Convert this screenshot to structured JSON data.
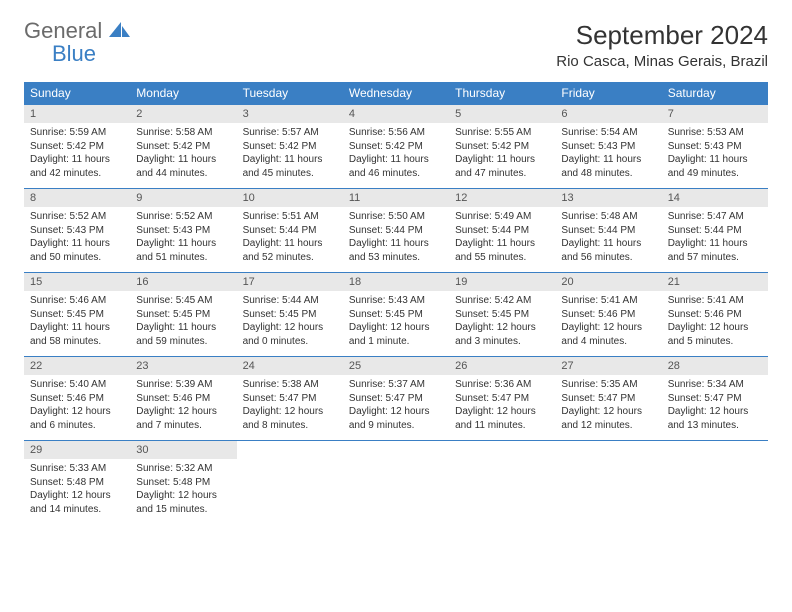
{
  "logo": {
    "general": "General",
    "blue": "Blue"
  },
  "title": "September 2024",
  "location": "Rio Casca, Minas Gerais, Brazil",
  "colors": {
    "header_bg": "#3a7fc4",
    "header_text": "#ffffff",
    "daynum_bg": "#e8e8e8",
    "daynum_text": "#555555",
    "body_text": "#333333",
    "border": "#3a7fc4",
    "logo_gray": "#6b6b6b",
    "logo_blue": "#3a7fc4"
  },
  "dow": [
    "Sunday",
    "Monday",
    "Tuesday",
    "Wednesday",
    "Thursday",
    "Friday",
    "Saturday"
  ],
  "weeks": [
    [
      {
        "n": "1",
        "sr": "Sunrise: 5:59 AM",
        "ss": "Sunset: 5:42 PM",
        "d1": "Daylight: 11 hours",
        "d2": "and 42 minutes."
      },
      {
        "n": "2",
        "sr": "Sunrise: 5:58 AM",
        "ss": "Sunset: 5:42 PM",
        "d1": "Daylight: 11 hours",
        "d2": "and 44 minutes."
      },
      {
        "n": "3",
        "sr": "Sunrise: 5:57 AM",
        "ss": "Sunset: 5:42 PM",
        "d1": "Daylight: 11 hours",
        "d2": "and 45 minutes."
      },
      {
        "n": "4",
        "sr": "Sunrise: 5:56 AM",
        "ss": "Sunset: 5:42 PM",
        "d1": "Daylight: 11 hours",
        "d2": "and 46 minutes."
      },
      {
        "n": "5",
        "sr": "Sunrise: 5:55 AM",
        "ss": "Sunset: 5:42 PM",
        "d1": "Daylight: 11 hours",
        "d2": "and 47 minutes."
      },
      {
        "n": "6",
        "sr": "Sunrise: 5:54 AM",
        "ss": "Sunset: 5:43 PM",
        "d1": "Daylight: 11 hours",
        "d2": "and 48 minutes."
      },
      {
        "n": "7",
        "sr": "Sunrise: 5:53 AM",
        "ss": "Sunset: 5:43 PM",
        "d1": "Daylight: 11 hours",
        "d2": "and 49 minutes."
      }
    ],
    [
      {
        "n": "8",
        "sr": "Sunrise: 5:52 AM",
        "ss": "Sunset: 5:43 PM",
        "d1": "Daylight: 11 hours",
        "d2": "and 50 minutes."
      },
      {
        "n": "9",
        "sr": "Sunrise: 5:52 AM",
        "ss": "Sunset: 5:43 PM",
        "d1": "Daylight: 11 hours",
        "d2": "and 51 minutes."
      },
      {
        "n": "10",
        "sr": "Sunrise: 5:51 AM",
        "ss": "Sunset: 5:44 PM",
        "d1": "Daylight: 11 hours",
        "d2": "and 52 minutes."
      },
      {
        "n": "11",
        "sr": "Sunrise: 5:50 AM",
        "ss": "Sunset: 5:44 PM",
        "d1": "Daylight: 11 hours",
        "d2": "and 53 minutes."
      },
      {
        "n": "12",
        "sr": "Sunrise: 5:49 AM",
        "ss": "Sunset: 5:44 PM",
        "d1": "Daylight: 11 hours",
        "d2": "and 55 minutes."
      },
      {
        "n": "13",
        "sr": "Sunrise: 5:48 AM",
        "ss": "Sunset: 5:44 PM",
        "d1": "Daylight: 11 hours",
        "d2": "and 56 minutes."
      },
      {
        "n": "14",
        "sr": "Sunrise: 5:47 AM",
        "ss": "Sunset: 5:44 PM",
        "d1": "Daylight: 11 hours",
        "d2": "and 57 minutes."
      }
    ],
    [
      {
        "n": "15",
        "sr": "Sunrise: 5:46 AM",
        "ss": "Sunset: 5:45 PM",
        "d1": "Daylight: 11 hours",
        "d2": "and 58 minutes."
      },
      {
        "n": "16",
        "sr": "Sunrise: 5:45 AM",
        "ss": "Sunset: 5:45 PM",
        "d1": "Daylight: 11 hours",
        "d2": "and 59 minutes."
      },
      {
        "n": "17",
        "sr": "Sunrise: 5:44 AM",
        "ss": "Sunset: 5:45 PM",
        "d1": "Daylight: 12 hours",
        "d2": "and 0 minutes."
      },
      {
        "n": "18",
        "sr": "Sunrise: 5:43 AM",
        "ss": "Sunset: 5:45 PM",
        "d1": "Daylight: 12 hours",
        "d2": "and 1 minute."
      },
      {
        "n": "19",
        "sr": "Sunrise: 5:42 AM",
        "ss": "Sunset: 5:45 PM",
        "d1": "Daylight: 12 hours",
        "d2": "and 3 minutes."
      },
      {
        "n": "20",
        "sr": "Sunrise: 5:41 AM",
        "ss": "Sunset: 5:46 PM",
        "d1": "Daylight: 12 hours",
        "d2": "and 4 minutes."
      },
      {
        "n": "21",
        "sr": "Sunrise: 5:41 AM",
        "ss": "Sunset: 5:46 PM",
        "d1": "Daylight: 12 hours",
        "d2": "and 5 minutes."
      }
    ],
    [
      {
        "n": "22",
        "sr": "Sunrise: 5:40 AM",
        "ss": "Sunset: 5:46 PM",
        "d1": "Daylight: 12 hours",
        "d2": "and 6 minutes."
      },
      {
        "n": "23",
        "sr": "Sunrise: 5:39 AM",
        "ss": "Sunset: 5:46 PM",
        "d1": "Daylight: 12 hours",
        "d2": "and 7 minutes."
      },
      {
        "n": "24",
        "sr": "Sunrise: 5:38 AM",
        "ss": "Sunset: 5:47 PM",
        "d1": "Daylight: 12 hours",
        "d2": "and 8 minutes."
      },
      {
        "n": "25",
        "sr": "Sunrise: 5:37 AM",
        "ss": "Sunset: 5:47 PM",
        "d1": "Daylight: 12 hours",
        "d2": "and 9 minutes."
      },
      {
        "n": "26",
        "sr": "Sunrise: 5:36 AM",
        "ss": "Sunset: 5:47 PM",
        "d1": "Daylight: 12 hours",
        "d2": "and 11 minutes."
      },
      {
        "n": "27",
        "sr": "Sunrise: 5:35 AM",
        "ss": "Sunset: 5:47 PM",
        "d1": "Daylight: 12 hours",
        "d2": "and 12 minutes."
      },
      {
        "n": "28",
        "sr": "Sunrise: 5:34 AM",
        "ss": "Sunset: 5:47 PM",
        "d1": "Daylight: 12 hours",
        "d2": "and 13 minutes."
      }
    ],
    [
      {
        "n": "29",
        "sr": "Sunrise: 5:33 AM",
        "ss": "Sunset: 5:48 PM",
        "d1": "Daylight: 12 hours",
        "d2": "and 14 minutes."
      },
      {
        "n": "30",
        "sr": "Sunrise: 5:32 AM",
        "ss": "Sunset: 5:48 PM",
        "d1": "Daylight: 12 hours",
        "d2": "and 15 minutes."
      },
      null,
      null,
      null,
      null,
      null
    ]
  ]
}
